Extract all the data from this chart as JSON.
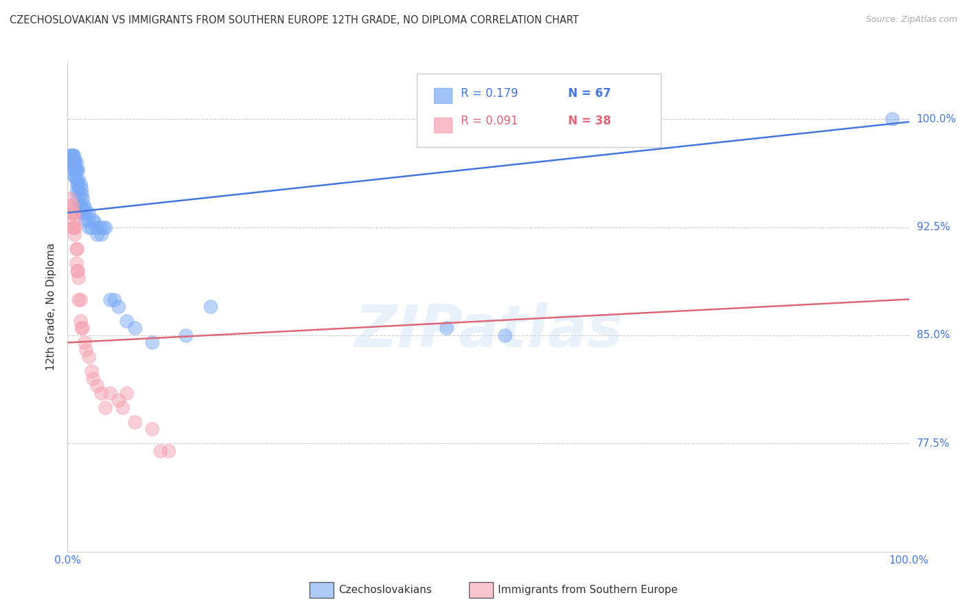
{
  "title": "CZECHOSLOVAKIAN VS IMMIGRANTS FROM SOUTHERN EUROPE 12TH GRADE, NO DIPLOMA CORRELATION CHART",
  "source": "Source: ZipAtlas.com",
  "ylabel": "12th Grade, No Diploma",
  "ytick_labels": [
    "100.0%",
    "92.5%",
    "85.0%",
    "77.5%"
  ],
  "ytick_values": [
    1.0,
    0.925,
    0.85,
    0.775
  ],
  "xlim": [
    0.0,
    1.0
  ],
  "ylim": [
    0.7,
    1.04
  ],
  "background_color": "#ffffff",
  "grid_color": "#cccccc",
  "watermark": "ZIPatlas",
  "legend_r1": "R = 0.179",
  "legend_n1": "N = 67",
  "legend_r2": "R = 0.091",
  "legend_n2": "N = 38",
  "blue_color": "#7aaaf5",
  "pink_color": "#f5a0b0",
  "blue_line_color": "#4477dd",
  "pink_line_color": "#dd6677",
  "legend_label1": "Czechoslovakians",
  "legend_label2": "Immigrants from Southern Europe",
  "blue_scatter_x": [
    0.003,
    0.004,
    0.004,
    0.005,
    0.005,
    0.005,
    0.006,
    0.006,
    0.006,
    0.006,
    0.007,
    0.007,
    0.007,
    0.007,
    0.008,
    0.008,
    0.008,
    0.009,
    0.009,
    0.009,
    0.01,
    0.01,
    0.01,
    0.01,
    0.011,
    0.011,
    0.012,
    0.012,
    0.012,
    0.013,
    0.013,
    0.013,
    0.014,
    0.015,
    0.015,
    0.016,
    0.016,
    0.017,
    0.018,
    0.018,
    0.019,
    0.02,
    0.02,
    0.022,
    0.024,
    0.025,
    0.025,
    0.028,
    0.03,
    0.032,
    0.034,
    0.035,
    0.038,
    0.04,
    0.042,
    0.045,
    0.05,
    0.055,
    0.06,
    0.07,
    0.08,
    0.1,
    0.14,
    0.17,
    0.45,
    0.52,
    0.98
  ],
  "blue_scatter_y": [
    0.975,
    0.975,
    0.972,
    0.975,
    0.972,
    0.972,
    0.975,
    0.972,
    0.97,
    0.968,
    0.975,
    0.972,
    0.97,
    0.965,
    0.972,
    0.965,
    0.96,
    0.97,
    0.965,
    0.96,
    0.97,
    0.965,
    0.958,
    0.95,
    0.965,
    0.955,
    0.965,
    0.955,
    0.945,
    0.958,
    0.95,
    0.94,
    0.948,
    0.955,
    0.94,
    0.952,
    0.94,
    0.948,
    0.945,
    0.935,
    0.94,
    0.938,
    0.93,
    0.935,
    0.93,
    0.935,
    0.925,
    0.925,
    0.93,
    0.928,
    0.925,
    0.92,
    0.925,
    0.92,
    0.925,
    0.925,
    0.875,
    0.875,
    0.87,
    0.86,
    0.855,
    0.845,
    0.85,
    0.87,
    0.855,
    0.85,
    1.0
  ],
  "pink_scatter_x": [
    0.003,
    0.004,
    0.005,
    0.005,
    0.006,
    0.006,
    0.007,
    0.007,
    0.008,
    0.008,
    0.009,
    0.01,
    0.01,
    0.011,
    0.011,
    0.012,
    0.013,
    0.013,
    0.015,
    0.015,
    0.016,
    0.018,
    0.02,
    0.022,
    0.025,
    0.028,
    0.03,
    0.035,
    0.04,
    0.045,
    0.05,
    0.06,
    0.065,
    0.07,
    0.08,
    0.1,
    0.11,
    0.12
  ],
  "pink_scatter_y": [
    0.945,
    0.94,
    0.94,
    0.935,
    0.935,
    0.925,
    0.935,
    0.925,
    0.93,
    0.92,
    0.925,
    0.91,
    0.9,
    0.91,
    0.895,
    0.895,
    0.89,
    0.875,
    0.875,
    0.86,
    0.855,
    0.855,
    0.845,
    0.84,
    0.835,
    0.825,
    0.82,
    0.815,
    0.81,
    0.8,
    0.81,
    0.805,
    0.8,
    0.81,
    0.79,
    0.785,
    0.77,
    0.77
  ],
  "blue_trend_x": [
    0.0,
    1.0
  ],
  "blue_trend_y": [
    0.935,
    0.998
  ],
  "pink_trend_x": [
    0.0,
    1.0
  ],
  "pink_trend_y": [
    0.845,
    0.875
  ]
}
